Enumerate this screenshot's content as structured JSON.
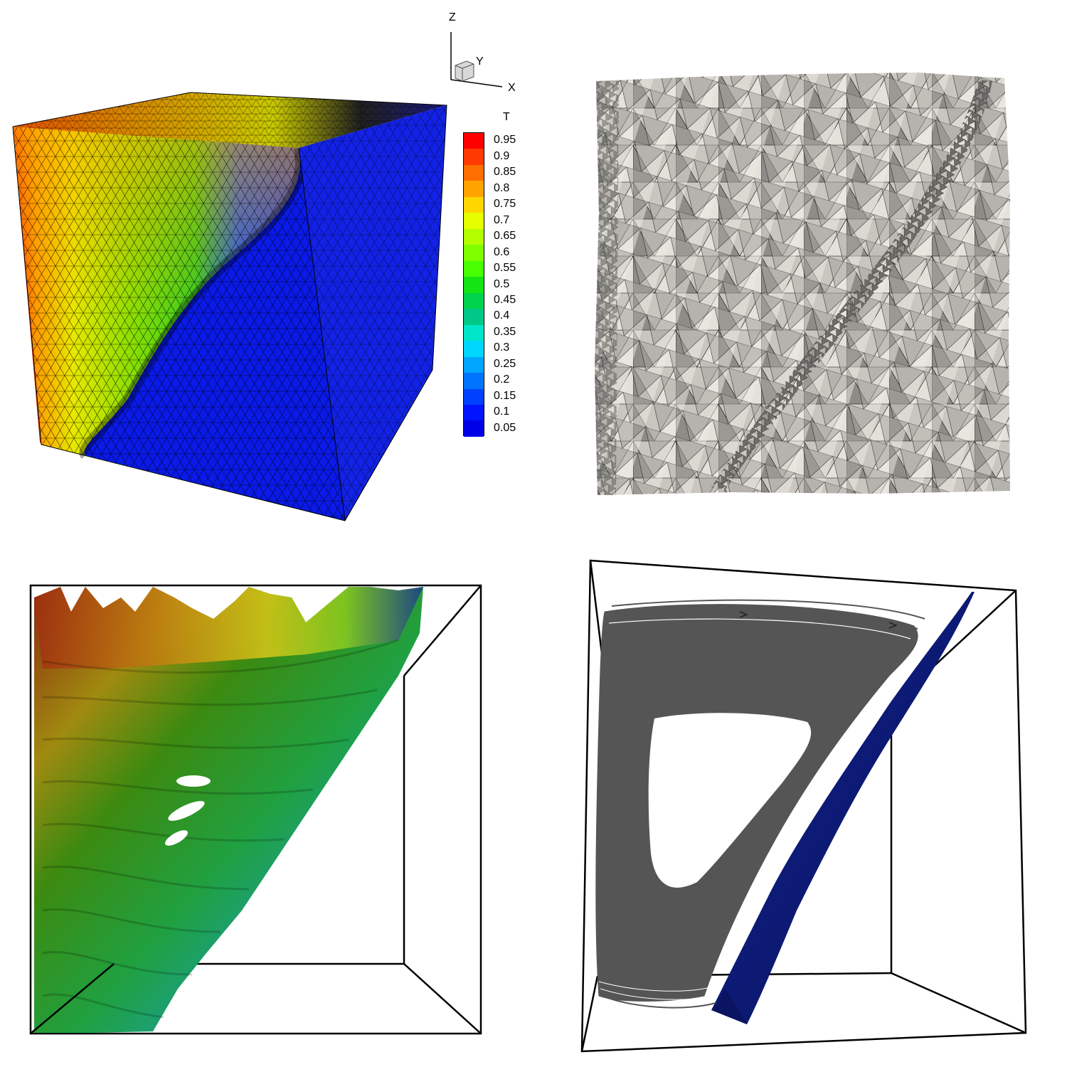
{
  "axes_triad": {
    "z_label": "Z",
    "y_label": "Y",
    "x_label": "X"
  },
  "colorbar": {
    "title": "T",
    "ticks": [
      "0.95",
      "0.9",
      "0.85",
      "0.8",
      "0.75",
      "0.7",
      "0.65",
      "0.6",
      "0.55",
      "0.5",
      "0.45",
      "0.4",
      "0.35",
      "0.3",
      "0.25",
      "0.2",
      "0.15",
      "0.1",
      "0.05"
    ],
    "colors": [
      "#ff0000",
      "#ff3a00",
      "#ff6f00",
      "#ffa300",
      "#ffd700",
      "#e6ff00",
      "#b3ff00",
      "#7fff00",
      "#47ff00",
      "#14e314",
      "#00d24b",
      "#00c987",
      "#00e6c8",
      "#00d7ff",
      "#00a5ff",
      "#0073ff",
      "#0041ff",
      "#0014ff",
      "#0000e6"
    ]
  },
  "panels": {
    "top_left": {
      "subject": "cube mesh colored by T"
    },
    "top_right": {
      "subject": "triangulated mesh surface"
    },
    "bottom_left": {
      "subject": "isosurfaces of T in box"
    },
    "bottom_right": {
      "subject": "streamlines and isosurface in box"
    }
  }
}
